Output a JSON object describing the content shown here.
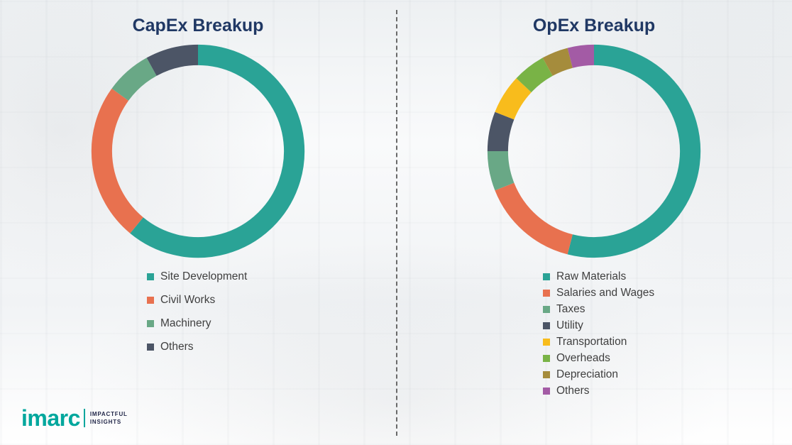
{
  "style": {
    "title_color": "#203864",
    "legend_text_color": "#3f3f3f",
    "divider_color": "#6a6a6a",
    "background_tint": "#f1f3f5"
  },
  "logo": {
    "brand": "imarc",
    "tagline_line1": "IMPACTFUL",
    "tagline_line2": "INSIGHTS",
    "brand_color": "#00a79d",
    "tagline_color": "#23284a"
  },
  "chart_data": [
    {
      "type": "pie",
      "donut": true,
      "title": "CapEx Breakup",
      "categories": [
        "Site Development",
        "Civil Works",
        "Machinery",
        "Others"
      ],
      "values": [
        61,
        24,
        7,
        8
      ],
      "colors": [
        "#2aa396",
        "#e8714f",
        "#69a886",
        "#4c5566"
      ],
      "units": "percent_estimated",
      "legend_position": "bottom",
      "start_angle": "top",
      "direction": "clockwise"
    },
    {
      "type": "pie",
      "donut": true,
      "title": "OpEx Breakup",
      "categories": [
        "Raw Materials",
        "Salaries and Wages",
        "Taxes",
        "Utility",
        "Transportation",
        "Overheads",
        "Depreciation",
        "Others"
      ],
      "values": [
        54,
        15,
        6,
        6,
        6,
        5,
        4,
        4
      ],
      "colors": [
        "#2aa396",
        "#e8714f",
        "#69a886",
        "#4c5566",
        "#f8bc1c",
        "#79b346",
        "#a58c3c",
        "#a35ba5"
      ],
      "units": "percent_estimated",
      "legend_position": "bottom",
      "start_angle": "top",
      "direction": "clockwise"
    }
  ]
}
